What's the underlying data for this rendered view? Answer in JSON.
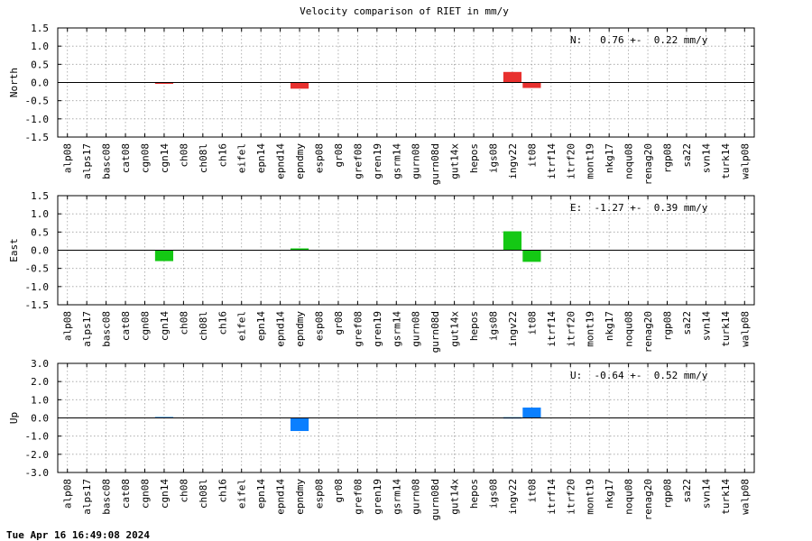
{
  "timestamp": "Tue Apr 16 16:49:08 2024",
  "chart_data": {
    "type": "bar",
    "title": "Velocity comparison of RIET in mm/y",
    "grid": true,
    "categories": [
      "alp08",
      "alps17",
      "basc08",
      "cat08",
      "cgn08",
      "cgn14",
      "ch08",
      "ch08l",
      "ch16",
      "eifel",
      "epn14",
      "epnd14",
      "epndmy",
      "esp08",
      "gr08",
      "gref08",
      "gren19",
      "gsrm14",
      "gurn08",
      "gurn08d",
      "gut14x",
      "hepos",
      "igs08",
      "ingv22",
      "it08",
      "itrf14",
      "itrf20",
      "mont19",
      "nkg17",
      "noqu08",
      "renag20",
      "rgp08",
      "sa22",
      "svn14",
      "turk14",
      "walp08"
    ],
    "panels": [
      {
        "ylabel": "North",
        "color": "#e8302e",
        "ylim": [
          -1.5,
          1.5
        ],
        "yticks": [
          "1.5",
          "1.0",
          "0.5",
          "0.0",
          "-0.5",
          "-1.0",
          "-1.5"
        ],
        "stat": "N:   0.76 +-  0.22 mm/y",
        "values": [
          0,
          0,
          0,
          0,
          0,
          -0.02,
          0,
          0,
          0,
          0,
          0,
          0,
          -0.17,
          0,
          0,
          0,
          0,
          0,
          0,
          0,
          0,
          0,
          0,
          0.29,
          -0.15,
          0,
          0,
          0,
          0,
          0,
          0,
          0,
          0,
          0,
          0,
          0
        ]
      },
      {
        "ylabel": "East",
        "color": "#14c814",
        "ylim": [
          -1.5,
          1.5
        ],
        "yticks": [
          "1.5",
          "1.0",
          "0.5",
          "0.0",
          "-0.5",
          "-1.0",
          "-1.5"
        ],
        "stat": "E:  -1.27 +-  0.39 mm/y",
        "values": [
          0,
          0,
          0,
          0,
          0,
          -0.3,
          0,
          0,
          0,
          0,
          0,
          0,
          0.05,
          0,
          0,
          0,
          0,
          0,
          0,
          0,
          0,
          0,
          0,
          0.52,
          -0.32,
          0,
          0,
          0,
          0,
          0,
          0,
          0,
          0,
          0,
          0,
          0
        ]
      },
      {
        "ylabel": "Up",
        "color": "#0a7fff",
        "ylim": [
          -3.0,
          3.0
        ],
        "yticks": [
          "3.0",
          "2.0",
          "1.0",
          "0.0",
          "-1.0",
          "-2.0",
          "-3.0"
        ],
        "stat": "U:  -0.64 +-  0.52 mm/y",
        "values": [
          0,
          0,
          0,
          0,
          0,
          0.05,
          0,
          0,
          0,
          0,
          0,
          0,
          -0.72,
          0,
          0,
          0,
          0,
          0,
          0,
          0,
          0,
          0,
          0,
          0.04,
          0.57,
          0,
          0,
          0,
          0,
          0,
          0,
          0,
          0,
          0,
          0,
          0
        ]
      }
    ]
  }
}
